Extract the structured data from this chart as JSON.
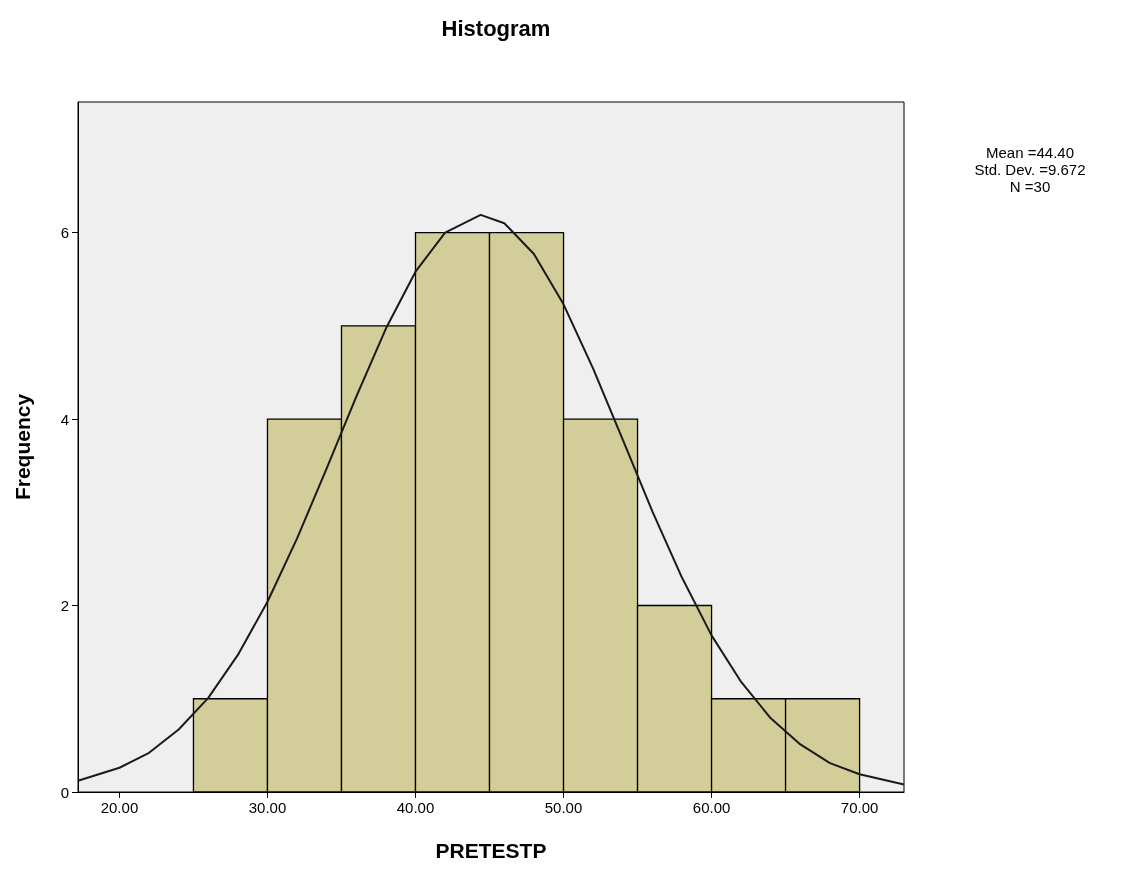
{
  "chart_data": {
    "type": "histogram",
    "title": "Histogram",
    "xlabel": "PRETESTP",
    "ylabel": "Frequency",
    "bins": [
      25,
      30,
      35,
      40,
      45,
      50,
      55,
      60,
      65,
      70
    ],
    "values": [
      1,
      4,
      5,
      6,
      6,
      4,
      2,
      1,
      1
    ],
    "color": "#d3ce99",
    "series": [
      {
        "type": "line",
        "color": "#1a1a1a",
        "x": [
          17.2,
          20,
          22,
          24,
          26,
          28,
          30,
          32,
          34,
          36,
          38,
          40,
          42,
          44.4,
          46,
          48,
          50,
          52,
          54,
          56,
          58,
          60,
          62,
          64,
          66,
          68,
          70,
          73
        ],
        "values": [
          0.12,
          0.26,
          0.42,
          0.67,
          1.01,
          1.47,
          2.04,
          2.72,
          3.47,
          4.24,
          4.97,
          5.58,
          6.0,
          6.19,
          6.1,
          5.77,
          5.23,
          4.54,
          3.78,
          3.01,
          2.3,
          1.68,
          1.18,
          0.79,
          0.51,
          0.31,
          0.19,
          0.08
        ]
      }
    ],
    "xlim": [
      17.2,
      73.0
    ],
    "ylim": [
      0,
      7.4
    ],
    "xticks": [
      {
        "value": 20,
        "label": "20.00"
      },
      {
        "value": 30,
        "label": "30.00"
      },
      {
        "value": 40,
        "label": "40.00"
      },
      {
        "value": 50,
        "label": "50.00"
      },
      {
        "value": 60,
        "label": "60.00"
      },
      {
        "value": 70,
        "label": "70.00"
      }
    ],
    "yticks": [
      0,
      2,
      4,
      6
    ],
    "grid": false,
    "annotations": [
      "Mean =44.40",
      "Std. Dev. =9.672",
      "N =30"
    ]
  }
}
